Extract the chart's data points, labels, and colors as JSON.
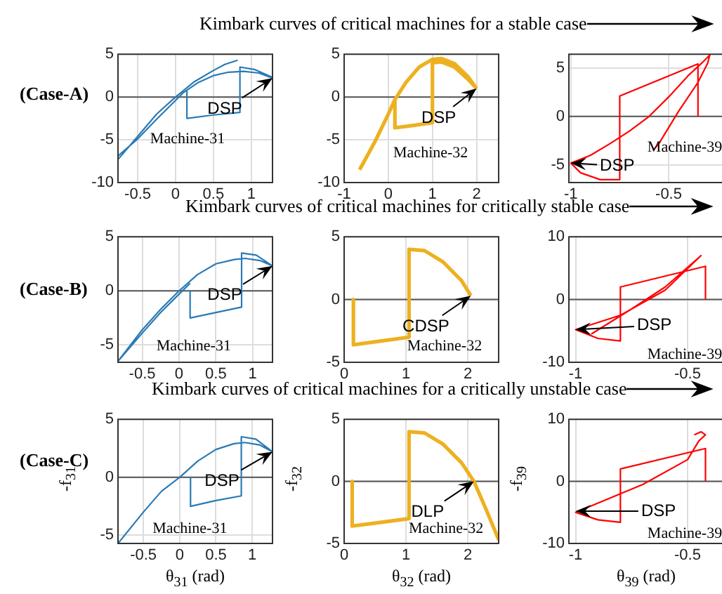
{
  "chart_data": [
    {
      "type": "line",
      "title": "Kimbark curves of critical machines for a stable case",
      "subtitle": "(Case-A)",
      "xlim": [
        -0.76,
        1.28
      ],
      "xticks": [
        -0.5,
        0,
        0.5,
        1
      ],
      "ylim": [
        -10,
        5
      ],
      "yticks": [
        -10,
        -5,
        0,
        5
      ],
      "grid": true,
      "ref_lines": [
        {
          "axis": "y",
          "value": 0,
          "color": "#555555"
        }
      ],
      "annotations": [
        {
          "text": "DSP",
          "x": 1.28,
          "y": 2.2
        },
        "Machine-31"
      ],
      "series": [
        {
          "color": "#2a7ab5",
          "x": [
            -0.76,
            -0.5,
            -0.25,
            0,
            0.25,
            0.5,
            0.65,
            0.82,
            null,
            -0.76,
            -0.5,
            -0.25,
            0,
            0.1,
            0.3,
            0.5,
            0.7,
            0.9,
            1.1,
            1.28,
            null,
            0.15,
            0.15,
            0.5,
            0.85,
            0.85,
            1.05,
            1.28
          ],
          "values": [
            -7.3,
            -4.6,
            -2,
            0,
            1.8,
            3.1,
            3.8,
            4.3,
            null,
            -6.9,
            -4.9,
            -2.6,
            -0.4,
            0.5,
            1.7,
            2.5,
            2.9,
            3,
            2.8,
            2.2,
            null,
            0.7,
            -2.5,
            -2.1,
            -1.8,
            3.5,
            3.2,
            2.3
          ]
        }
      ]
    },
    {
      "type": "line",
      "xlim": [
        -1,
        2.5
      ],
      "xticks": [
        -1,
        0,
        1,
        2
      ],
      "ylim": [
        -10,
        5
      ],
      "yticks": [
        -10,
        -5,
        0,
        5
      ],
      "grid": true,
      "ref_lines": [
        {
          "axis": "y",
          "value": 0,
          "color": "#555555"
        }
      ],
      "annotations": [
        {
          "text": "DSP",
          "x": 2,
          "y": 1
        },
        "Machine-32"
      ],
      "series": [
        {
          "color": "#edb120",
          "x": [
            -0.65,
            -0.3,
            0,
            0.15,
            0.4,
            0.7,
            1,
            1.2,
            1.5,
            1.8,
            2,
            null,
            0.15,
            0.15,
            0.6,
            1,
            1,
            1.2,
            1.5,
            1.8,
            2
          ],
          "values": [
            -8.5,
            -5.2,
            -2,
            -0.3,
            1.7,
            3.5,
            4.4,
            4.5,
            3.9,
            2.4,
            1,
            null,
            -0.3,
            -3.6,
            -3.3,
            -3,
            4,
            4.1,
            3.5,
            2.1,
            1
          ]
        }
      ]
    },
    {
      "type": "line",
      "xlim": [
        -1.01,
        -0.22
      ],
      "xticks": [
        -1,
        -0.5
      ],
      "ylim": [
        -6.8,
        6.4
      ],
      "yticks": [
        -5,
        0,
        5
      ],
      "grid": true,
      "ref_lines": [
        {
          "axis": "y",
          "value": 0,
          "color": "#555555"
        }
      ],
      "annotations": [
        {
          "text": "DSP",
          "x": -1,
          "y": -4.8
        },
        "Machine-39"
      ],
      "series": [
        {
          "color": "#ff0000",
          "x": [
            -0.35,
            -0.35,
            -0.75,
            -0.75,
            -0.85,
            -0.95,
            -1,
            -0.9,
            -0.8,
            -0.7,
            -0.6,
            -0.5,
            -0.4,
            -0.33,
            -0.29,
            -0.3,
            -0.35,
            -0.45,
            -0.55,
            -0.58
          ],
          "values": [
            0,
            5.4,
            2.1,
            -6.5,
            -6.5,
            -5.8,
            -4.8,
            -4,
            -2.8,
            -1.5,
            0,
            2,
            4.2,
            5.5,
            6.3,
            5.5,
            3.5,
            0.5,
            -2.8,
            -3.5
          ]
        }
      ]
    },
    {
      "type": "line",
      "title": "Kimbark curves of critical machines for critically stable case",
      "subtitle": "(Case-B)",
      "xlim": [
        -0.83,
        1.27
      ],
      "xticks": [
        -0.5,
        0,
        0.5,
        1
      ],
      "ylim": [
        -6.6,
        5
      ],
      "yticks": [
        -5,
        0,
        5
      ],
      "grid": true,
      "ref_lines": [
        {
          "axis": "y",
          "value": 0,
          "color": "#555555"
        }
      ],
      "annotations": [
        {
          "text": "DSP",
          "x": 1.27,
          "y": 2.3
        },
        "Machine-31"
      ],
      "series": [
        {
          "color": "#2a7ab5",
          "x": [
            -0.83,
            -0.5,
            -0.25,
            0,
            0.25,
            0.5,
            0.75,
            0.9,
            1.1,
            1.27,
            null,
            -0.83,
            -0.5,
            -0.25,
            0,
            0.15,
            null,
            0.15,
            0.15,
            0.5,
            0.85,
            0.85,
            1.05,
            1.27
          ],
          "values": [
            -6.5,
            -3.6,
            -1.7,
            0,
            1.5,
            2.5,
            2.9,
            3,
            2.8,
            2.3,
            null,
            -6.5,
            -3.9,
            -2,
            -0.3,
            0.7,
            null,
            0,
            -2.5,
            -2,
            -1.5,
            3.5,
            3.3,
            2.3
          ]
        }
      ]
    },
    {
      "type": "line",
      "xlim": [
        0,
        2.5
      ],
      "xticks": [
        0,
        1,
        2
      ],
      "ylim": [
        -5,
        5
      ],
      "yticks": [
        -5,
        0,
        5
      ],
      "grid": true,
      "ref_lines": [
        {
          "axis": "y",
          "value": 0,
          "color": "#555555"
        }
      ],
      "annotations": [
        {
          "text": "CDSP",
          "x": 2.05,
          "y": 0.3
        },
        "Machine-32"
      ],
      "series": [
        {
          "color": "#edb120",
          "x": [
            0.15,
            0.15,
            0.6,
            1.05,
            1.05,
            1.3,
            1.6,
            1.9,
            2.05
          ],
          "values": [
            0,
            -3.6,
            -3.3,
            -3,
            4,
            3.9,
            3,
            1.5,
            0.3
          ]
        }
      ]
    },
    {
      "type": "line",
      "xlim": [
        -1.03,
        -0.34
      ],
      "xticks": [
        -1,
        -0.5
      ],
      "ylim": [
        -10,
        10
      ],
      "yticks": [
        -10,
        0,
        10
      ],
      "grid": true,
      "ref_lines": [
        {
          "axis": "y",
          "value": 0,
          "color": "#555555"
        }
      ],
      "annotations": [
        {
          "text": "DSP",
          "x": -1,
          "y": -4.8
        },
        "Machine-39"
      ],
      "series": [
        {
          "color": "#ff0000",
          "x": [
            -0.42,
            -0.42,
            -0.8,
            -0.8,
            -0.9,
            -1,
            -0.8,
            -0.6,
            -0.44,
            -0.6,
            -0.75,
            -0.93
          ],
          "values": [
            0,
            5.3,
            2,
            -6.6,
            -6.2,
            -4.8,
            -2.5,
            1.5,
            7,
            2,
            -1.5,
            -5.5
          ]
        }
      ]
    },
    {
      "type": "line",
      "title": "Kimbark curves of critical machines for a critically unstable case",
      "subtitle": "(Case-C)",
      "xlabel": "θ$_{31}$ (rad)",
      "ylabel": "-f$_{31}$",
      "xlim": [
        -0.85,
        1.28
      ],
      "xticks": [
        -0.5,
        0,
        0.5,
        1
      ],
      "ylim": [
        -5.7,
        5
      ],
      "yticks": [
        -5,
        0,
        5
      ],
      "grid": true,
      "ref_lines": [
        {
          "axis": "y",
          "value": 0,
          "color": "#555555"
        }
      ],
      "annotations": [
        {
          "text": "DSP",
          "x": 1.28,
          "y": 2.2
        },
        "Machine-31"
      ],
      "series": [
        {
          "color": "#2a7ab5",
          "x": [
            -0.85,
            -0.5,
            -0.25,
            0,
            0.25,
            0.5,
            0.75,
            0.9,
            1.1,
            1.28,
            null,
            0.15,
            0.15,
            0.5,
            0.85,
            0.85,
            1.05,
            1.28
          ],
          "values": [
            -5.7,
            -3,
            -1.2,
            0,
            1.4,
            2.4,
            2.9,
            3,
            2.8,
            2.2,
            null,
            0,
            -2.5,
            -2,
            -1.6,
            3.5,
            3.3,
            2.2
          ]
        }
      ]
    },
    {
      "type": "line",
      "xlabel": "θ$_{32}$ (rad)",
      "ylabel": "-f$_{32}$",
      "xlim": [
        0,
        2.5
      ],
      "xticks": [
        0,
        1,
        2
      ],
      "ylim": [
        -5,
        5
      ],
      "yticks": [
        -5,
        0,
        5
      ],
      "grid": true,
      "ref_lines": [
        {
          "axis": "y",
          "value": 0,
          "color": "#555555"
        }
      ],
      "annotations": [
        {
          "text": "DLP",
          "x": 2.1,
          "y": 0
        },
        "Machine-32"
      ],
      "series": [
        {
          "color": "#edb120",
          "x": [
            0.13,
            0.13,
            0.6,
            1.05,
            1.05,
            1.3,
            1.6,
            1.9,
            2.1,
            2.3,
            2.5
          ],
          "values": [
            0,
            -3.6,
            -3.3,
            -3,
            4,
            3.9,
            3,
            1.5,
            0,
            -2.3,
            -4.7
          ]
        }
      ]
    },
    {
      "type": "line",
      "xlabel": "θ$_{39}$ (rad)",
      "ylabel": "-f$_{39}$",
      "xlim": [
        -1.03,
        -0.34
      ],
      "xticks": [
        -1,
        -0.5
      ],
      "ylim": [
        -10,
        10
      ],
      "yticks": [
        -10,
        0,
        10
      ],
      "grid": true,
      "ref_lines": [
        {
          "axis": "y",
          "value": 0,
          "color": "#555555"
        }
      ],
      "annotations": [
        {
          "text": "DSP",
          "x": -1,
          "y": -4.8
        },
        "Machine-39"
      ],
      "series": [
        {
          "color": "#ff0000",
          "x": [
            -0.42,
            -0.42,
            -0.8,
            -0.8,
            -0.9,
            -1,
            -0.9,
            -0.7,
            -0.5,
            -0.45,
            -0.42,
            -0.44,
            -0.47
          ],
          "values": [
            0,
            5.3,
            2,
            -6.6,
            -6.2,
            -5,
            -3.5,
            -0.5,
            3.5,
            6.5,
            7.5,
            8,
            7.5
          ]
        }
      ]
    }
  ]
}
